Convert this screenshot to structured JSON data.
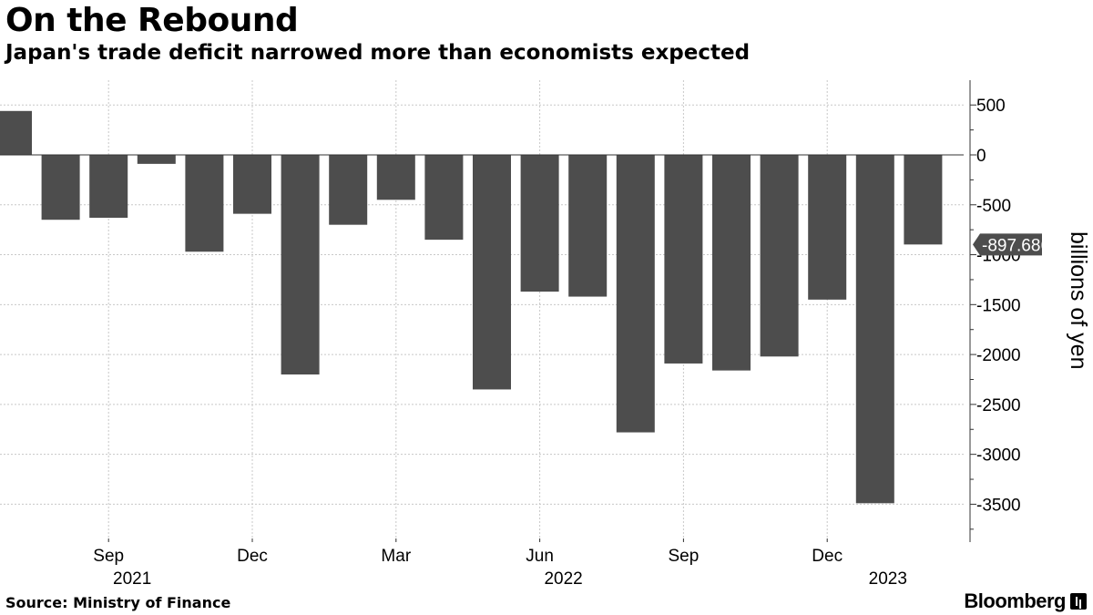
{
  "header": {
    "title": "On the Rebound",
    "subtitle": "Japan's trade deficit narrowed more than economists expected"
  },
  "footer": {
    "source": "Source: Ministry of Finance",
    "brand": "Bloomberg"
  },
  "colors": {
    "bar": "#4d4d4d",
    "grid": "#c8c8c8",
    "callout_bg": "#4d4d4d",
    "callout_text": "#ffffff"
  },
  "chart_data": {
    "type": "bar",
    "categories": [
      "2021-07",
      "2021-08",
      "2021-09",
      "2021-10",
      "2021-11",
      "2021-12",
      "2022-01",
      "2022-02",
      "2022-03",
      "2022-04",
      "2022-05",
      "2022-06",
      "2022-07",
      "2022-08",
      "2022-09",
      "2022-10",
      "2022-11",
      "2022-12",
      "2023-01",
      "2023-02"
    ],
    "values": [
      440,
      -650,
      -630,
      -90,
      -970,
      -590,
      -2200,
      -700,
      -450,
      -850,
      -2350,
      -1370,
      -1420,
      -2780,
      -2090,
      -2160,
      -2020,
      -1450,
      -3490,
      -897.686
    ],
    "title": "On the Rebound",
    "xlabel": "",
    "ylabel": "billions of yen",
    "ylim": [
      -3700,
      800
    ],
    "y_ticks": [
      500,
      0,
      -500,
      -1000,
      -1500,
      -2000,
      -2500,
      -3000,
      -3500
    ],
    "x_tick_labels": [
      {
        "category": "2021-09",
        "label": "Sep"
      },
      {
        "category": "2021-12",
        "label": "Dec"
      },
      {
        "category": "2022-03",
        "label": "Mar"
      },
      {
        "category": "2022-06",
        "label": "Jun"
      },
      {
        "category": "2022-09",
        "label": "Sep"
      },
      {
        "category": "2022-12",
        "label": "Dec"
      }
    ],
    "year_labels": [
      {
        "category": "2021-09",
        "label": "2021"
      },
      {
        "category": "2022-06",
        "label": "2022"
      },
      {
        "category": "2023-01",
        "label": "2023"
      }
    ],
    "grid": true,
    "y_axis_position": "right",
    "last_value_label": "-897.686"
  }
}
